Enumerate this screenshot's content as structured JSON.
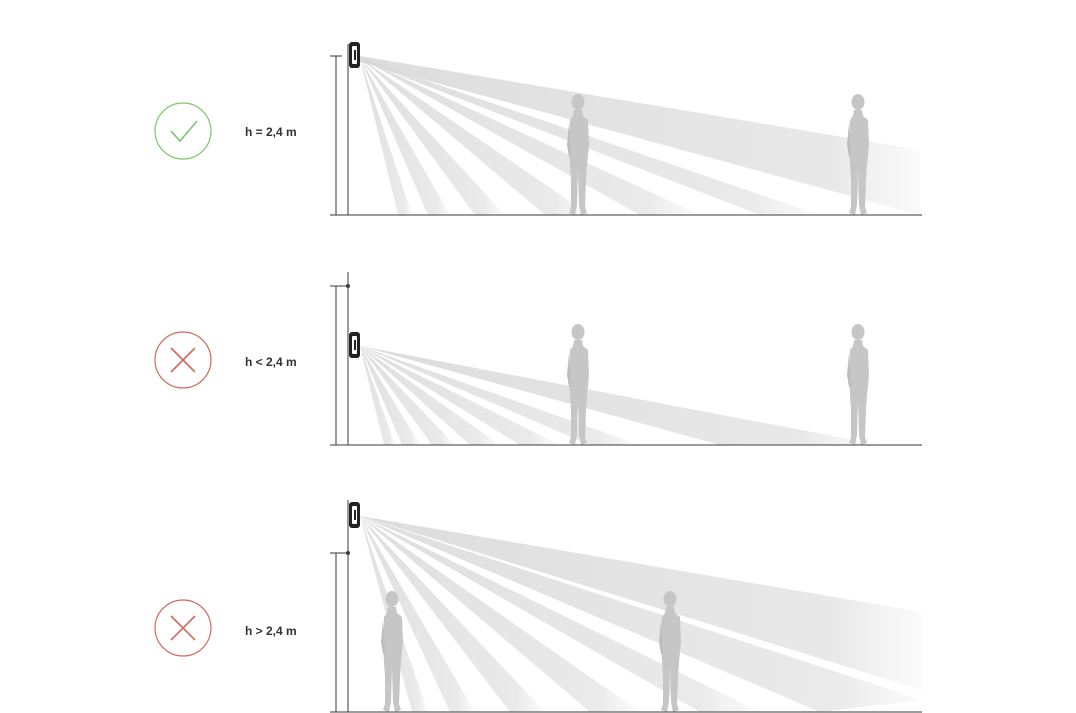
{
  "panels": [
    {
      "status": "correct",
      "height_label": "h = 2,4 m"
    },
    {
      "status": "incorrect",
      "height_label": "h < 2,4 m"
    },
    {
      "status": "incorrect",
      "height_label": "h > 2,4 m"
    }
  ],
  "colors": {
    "correct": "#7dc56b",
    "incorrect": "#d2695e",
    "beam": "#d8d8d8",
    "person": "#c9c9c9",
    "line": "#3a3a3a",
    "sensor": "#222222"
  },
  "icons": {
    "correct": "check-icon",
    "incorrect": "cross-icon",
    "device": "motion-sensor-icon",
    "figure": "person-silhouette-icon"
  }
}
